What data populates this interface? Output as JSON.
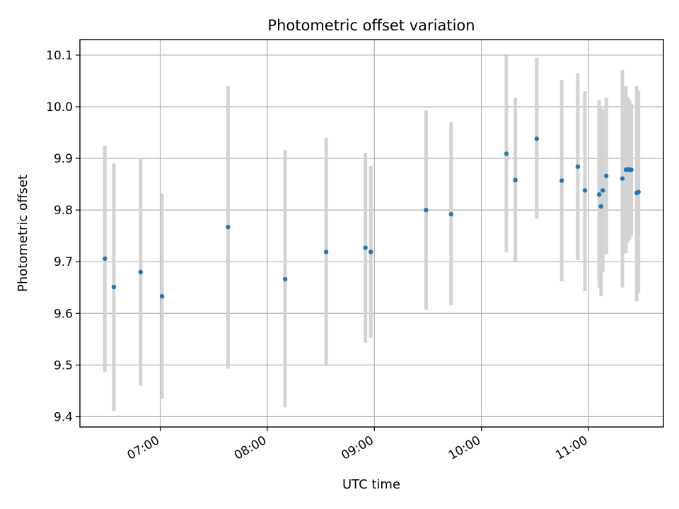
{
  "chart_data": {
    "type": "scatter",
    "title": "Photometric offset variation",
    "xlabel": "UTC time",
    "ylabel": "Photometric offset",
    "x_is_time": true,
    "xlim": [
      "06:15",
      "11:42"
    ],
    "ylim": [
      9.38,
      10.13
    ],
    "xticks": [
      "07:00",
      "08:00",
      "09:00",
      "10:00",
      "11:00"
    ],
    "yticks": [
      "9.4",
      "9.5",
      "9.6",
      "9.7",
      "9.8",
      "9.9",
      "10.0",
      "10.1"
    ],
    "grid": true,
    "colors": {
      "point": "#1f77b4",
      "errorbar": "#d3d3d3"
    },
    "points": [
      {
        "x": "06:29",
        "y": 9.706,
        "ylow": 9.487,
        "yhigh": 9.925
      },
      {
        "x": "06:34",
        "y": 9.651,
        "ylow": 9.411,
        "yhigh": 9.89
      },
      {
        "x": "06:49",
        "y": 9.68,
        "ylow": 9.46,
        "yhigh": 9.9
      },
      {
        "x": "07:01",
        "y": 9.633,
        "ylow": 9.435,
        "yhigh": 9.832
      },
      {
        "x": "07:38",
        "y": 9.767,
        "ylow": 9.493,
        "yhigh": 10.04
      },
      {
        "x": "08:10",
        "y": 9.666,
        "ylow": 9.418,
        "yhigh": 9.916
      },
      {
        "x": "08:33",
        "y": 9.719,
        "ylow": 9.498,
        "yhigh": 9.94
      },
      {
        "x": "08:55",
        "y": 9.727,
        "ylow": 9.543,
        "yhigh": 9.911
      },
      {
        "x": "08:58",
        "y": 9.719,
        "ylow": 9.553,
        "yhigh": 9.885
      },
      {
        "x": "09:29",
        "y": 9.8,
        "ylow": 9.607,
        "yhigh": 9.993
      },
      {
        "x": "09:43",
        "y": 9.792,
        "ylow": 9.616,
        "yhigh": 9.97
      },
      {
        "x": "10:14",
        "y": 9.909,
        "ylow": 9.718,
        "yhigh": 10.099
      },
      {
        "x": "10:19",
        "y": 9.858,
        "ylow": 9.7,
        "yhigh": 10.017
      },
      {
        "x": "10:31",
        "y": 9.938,
        "ylow": 9.783,
        "yhigh": 10.095
      },
      {
        "x": "10:45",
        "y": 9.857,
        "ylow": 9.662,
        "yhigh": 10.052
      },
      {
        "x": "10:54",
        "y": 9.884,
        "ylow": 9.703,
        "yhigh": 10.065
      },
      {
        "x": "10:58",
        "y": 9.838,
        "ylow": 9.643,
        "yhigh": 10.03
      },
      {
        "x": "11:06",
        "y": 9.83,
        "ylow": 9.65,
        "yhigh": 10.013
      },
      {
        "x": "11:07",
        "y": 9.807,
        "ylow": 9.633,
        "yhigh": 9.997
      },
      {
        "x": "11:08",
        "y": 9.838,
        "ylow": 9.68,
        "yhigh": 9.995
      },
      {
        "x": "11:10",
        "y": 9.866,
        "ylow": 9.714,
        "yhigh": 10.018
      },
      {
        "x": "11:19",
        "y": 9.861,
        "ylow": 9.65,
        "yhigh": 10.071
      },
      {
        "x": "11:21",
        "y": 9.878,
        "ylow": 9.716,
        "yhigh": 10.04
      },
      {
        "x": "11:22",
        "y": 9.879,
        "ylow": 9.738,
        "yhigh": 10.019
      },
      {
        "x": "11:23",
        "y": 9.878,
        "ylow": 9.743,
        "yhigh": 10.013
      },
      {
        "x": "11:24",
        "y": 9.878,
        "ylow": 9.75,
        "yhigh": 10.006
      },
      {
        "x": "11:27",
        "y": 9.833,
        "ylow": 9.623,
        "yhigh": 10.04
      },
      {
        "x": "11:28",
        "y": 9.835,
        "ylow": 9.64,
        "yhigh": 10.03
      }
    ]
  }
}
